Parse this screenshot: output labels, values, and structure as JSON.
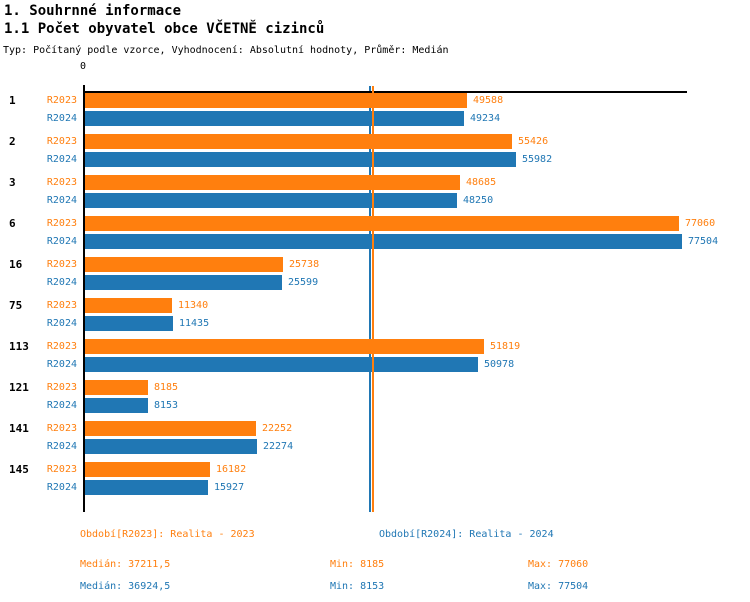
{
  "header": {
    "title": "1. Souhrnné informace",
    "subtitle": "1.1 Počet obyvatel obce VČETNĚ cizinců",
    "meta": "Typ: Počítaný podle vzorce, Vyhodnocení: Absolutní hodnoty, Průměr: Medián"
  },
  "chart_data": {
    "type": "bar",
    "orientation": "horizontal",
    "title": "1.1 Počet obyvatel obce VČETNĚ cizinců",
    "xlabel": "",
    "ylabel": "",
    "x_origin_label": "0",
    "xlim": [
      0,
      77504
    ],
    "grid": false,
    "categories": [
      "1",
      "2",
      "3",
      "6",
      "16",
      "75",
      "113",
      "121",
      "141",
      "145"
    ],
    "series": [
      {
        "name": "R2023",
        "legend": "Období[R2023]: Realita - 2023",
        "color": "#ff7f0e",
        "values": [
          49588,
          55426,
          48685,
          77060,
          25738,
          11340,
          51819,
          8185,
          22252,
          16182
        ],
        "median": 37211.5,
        "min": 8185,
        "max": 77060
      },
      {
        "name": "R2024",
        "legend": "Období[R2024]: Realita - 2024",
        "color": "#2077b4",
        "values": [
          49234,
          55982,
          48250,
          77504,
          25599,
          11435,
          50978,
          8153,
          22274,
          15927
        ],
        "median": 36924.5,
        "min": 8153,
        "max": 77504
      }
    ],
    "median_lines": [
      {
        "series": "R2024",
        "value": 36924.5,
        "color": "#2077b4"
      },
      {
        "series": "R2023",
        "value": 37211.5,
        "color": "#ff7f0e"
      }
    ],
    "legend_position": "bottom"
  },
  "footer": {
    "legend": [
      "Období[R2023]: Realita - 2023",
      "Období[R2024]: Realita - 2024"
    ],
    "stats": [
      [
        "Medián: 37211,5",
        "Min: 8185",
        "Max: 77060"
      ],
      [
        "Medián: 36924,5",
        "Min: 8153",
        "Max: 77504"
      ]
    ]
  }
}
